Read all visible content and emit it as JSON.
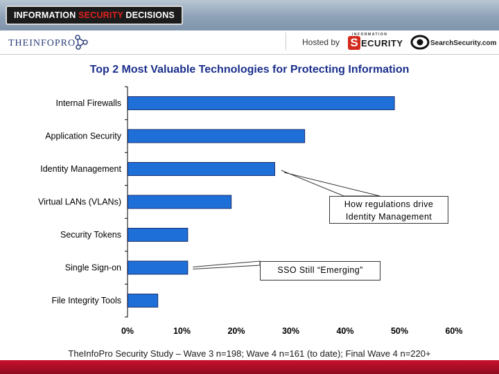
{
  "header": {
    "badge_prefix": "INFORMATION ",
    "badge_accent": "SECURITY",
    "badge_suffix": " DECISIONS",
    "theinfopro": "THEINFOPRO",
    "hosted_by": "Hosted by",
    "infosec_top": "INFORMATION",
    "infosec_s": "S",
    "infosec_rest": "ECURITY",
    "searchsecurity": "SearchSecurity.com"
  },
  "callouts": {
    "identity": [
      "How regulations drive",
      "Identity Management"
    ],
    "sso": "SSO Still “Emerging”"
  },
  "footer": "TheInfoPro Security Study – Wave 3 n=198; Wave 4 n=161 (to date); Final Wave 4 n=220+",
  "colors": {
    "bar": "#1f6fd8",
    "bar_edge": "#1a2e6c",
    "title": "#1a2e8c",
    "accent_red": "#c8102e"
  },
  "chart_data": {
    "type": "bar",
    "orientation": "horizontal",
    "title": "Top 2 Most Valuable Technologies for Protecting Information",
    "categories": [
      "Internal Firewalls",
      "Application Security",
      "Identity Management",
      "Virtual LANs (VLANs)",
      "Security Tokens",
      "Single Sign-on",
      "File Integrity Tools"
    ],
    "values": [
      49,
      32.5,
      27,
      19,
      11,
      11,
      5.5
    ],
    "xlim": [
      0,
      60
    ],
    "xticks": [
      "0%",
      "10%",
      "20%",
      "30%",
      "40%",
      "50%",
      "60%"
    ],
    "xlabel": "",
    "ylabel": "",
    "grid": false,
    "legend": "none"
  }
}
